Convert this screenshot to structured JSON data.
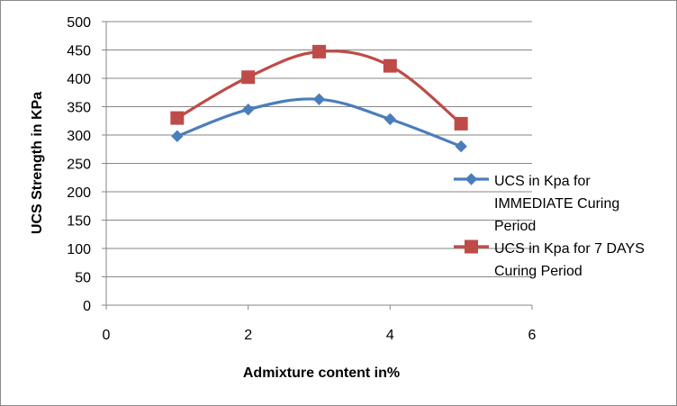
{
  "chart_data": {
    "type": "line",
    "xlabel": "Admixture content in%",
    "ylabel": "UCS Strength in KPa",
    "xlim": [
      0,
      6
    ],
    "ylim": [
      0,
      500
    ],
    "x_ticks": [
      "0",
      "2",
      "4",
      "6"
    ],
    "y_ticks": [
      "0",
      "50",
      "100",
      "150",
      "200",
      "250",
      "300",
      "350",
      "400",
      "450",
      "500"
    ],
    "grid": "horizontal",
    "legend_position": "right",
    "smooth": true,
    "series": [
      {
        "name": "UCS in Kpa for IMMEDIATE Curing Period",
        "legend_lines": [
          "UCS in Kpa for",
          "IMMEDIATE Curing",
          "Period"
        ],
        "marker": "diamond",
        "color": "#4a7ebb",
        "x": [
          1,
          2,
          3,
          4,
          5
        ],
        "values": [
          298,
          345,
          363,
          328,
          280
        ]
      },
      {
        "name": "UCS in Kpa for 7 DAYS Curing Period",
        "legend_lines": [
          "UCS in Kpa for  7 DAYS",
          "Curing Period"
        ],
        "marker": "square",
        "color": "#be4b48",
        "x": [
          1,
          2,
          3,
          4,
          5
        ],
        "values": [
          330,
          402,
          447,
          422,
          320
        ]
      }
    ]
  }
}
